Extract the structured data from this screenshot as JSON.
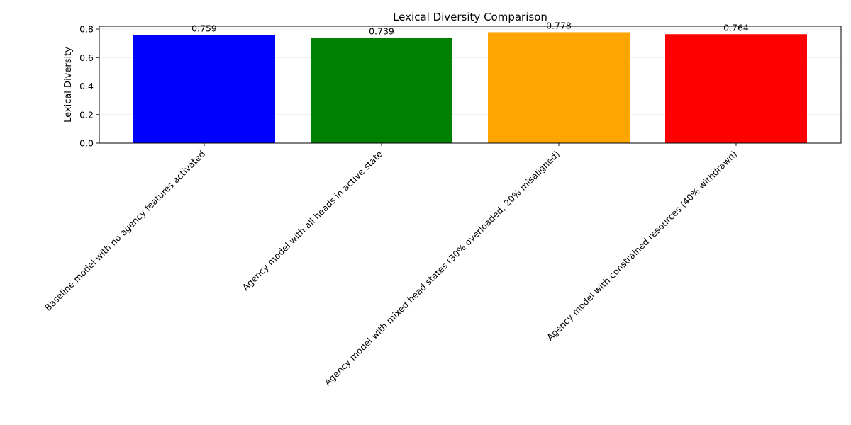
{
  "chart_data": {
    "type": "bar",
    "title": "Lexical Diversity Comparison",
    "xlabel": "",
    "ylabel": "Lexical Diversity",
    "categories": [
      "Baseline model with no agency features activated",
      "Agency model with all heads in active state",
      "Agency model with mixed head states (30% overloaded, 20% misaligned)",
      "Agency model with constrained resources (40% withdrawn)"
    ],
    "values": [
      0.759,
      0.739,
      0.778,
      0.764
    ],
    "value_labels": [
      "0.759",
      "0.739",
      "0.778",
      "0.764"
    ],
    "colors": [
      "#0000ff",
      "#008000",
      "#ffa500",
      "#ff0000"
    ],
    "ylim": [
      0,
      0.82
    ],
    "yticks": [
      0.0,
      0.2,
      0.4,
      0.6,
      0.8
    ],
    "ytick_labels": [
      "0.0",
      "0.2",
      "0.4",
      "0.6",
      "0.8"
    ],
    "grid": "y-axis only",
    "legend": "none"
  }
}
